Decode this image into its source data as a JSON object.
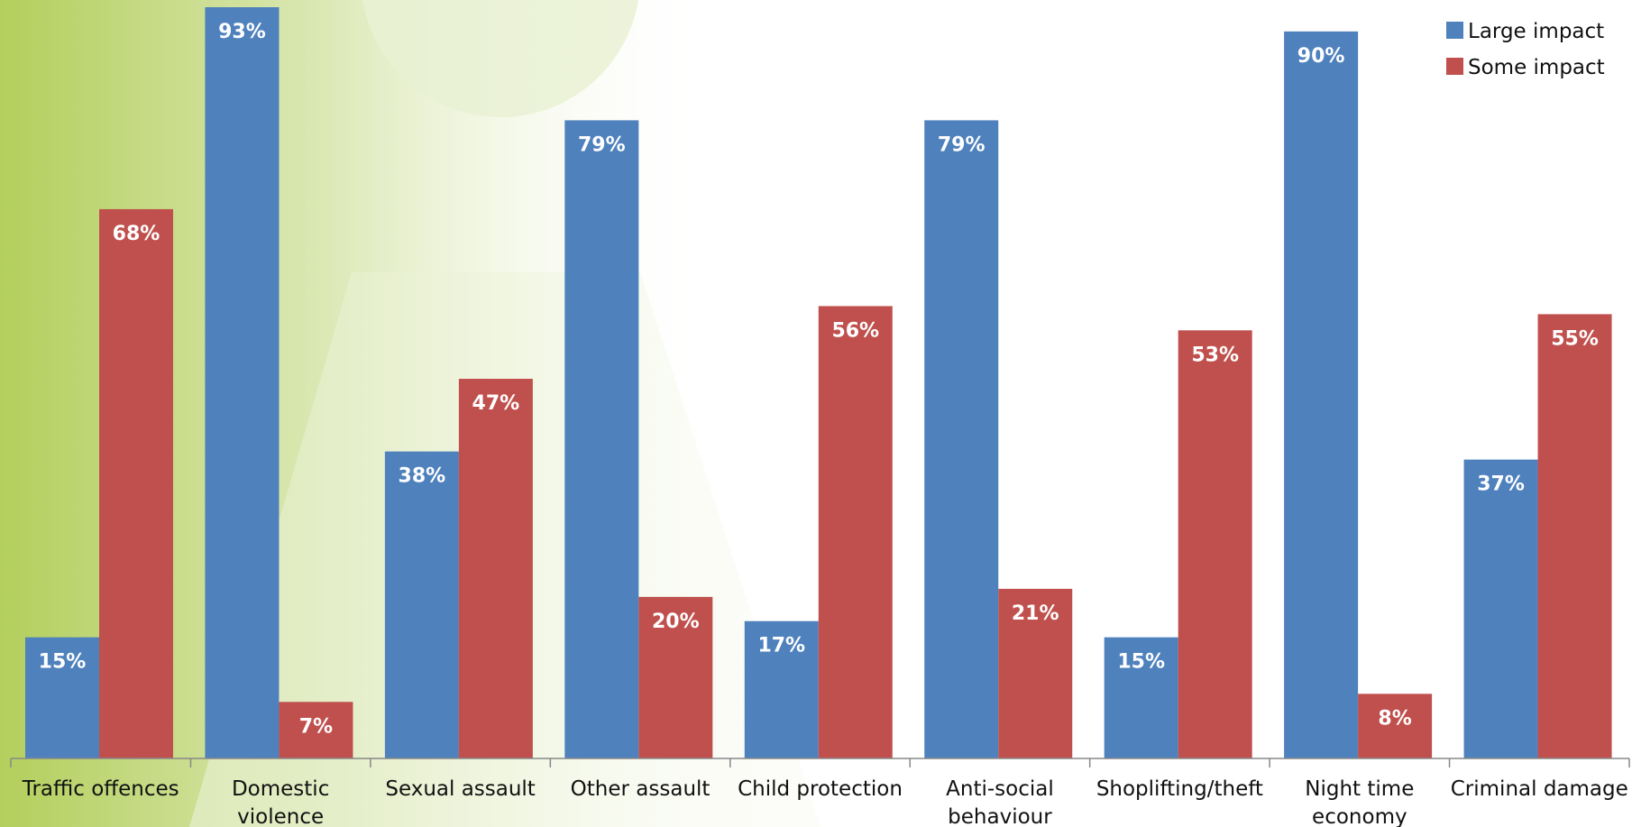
{
  "chart_data": {
    "type": "bar",
    "categories": [
      [
        "Traffic offences"
      ],
      [
        "Domestic",
        "violence"
      ],
      [
        "Sexual assault"
      ],
      [
        "Other assault"
      ],
      [
        "Child protection"
      ],
      [
        "Anti-social",
        "behaviour"
      ],
      [
        "Shoplifting/theft"
      ],
      [
        "Night time",
        "economy"
      ],
      [
        "Criminal damage"
      ]
    ],
    "series": [
      {
        "name": "Large impact",
        "color": "#4f81bd",
        "values": [
          15,
          93,
          38,
          79,
          17,
          79,
          15,
          90,
          37
        ]
      },
      {
        "name": "Some impact",
        "color": "#c0504d",
        "values": [
          68,
          7,
          47,
          20,
          56,
          21,
          53,
          8,
          55
        ]
      }
    ],
    "value_suffix": "%",
    "ylim": [
      0,
      100
    ],
    "legend": "top-right",
    "grid": false
  }
}
